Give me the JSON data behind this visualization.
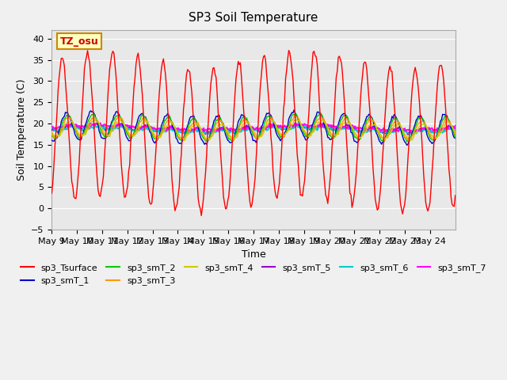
{
  "title": "SP3 Soil Temperature",
  "ylabel": "Soil Temperature (C)",
  "xlabel": "Time",
  "annotation": "TZ_osu",
  "ylim": [
    -5,
    42
  ],
  "yticks": [
    -5,
    0,
    5,
    10,
    15,
    20,
    25,
    30,
    35,
    40
  ],
  "xtick_labels": [
    "May 9",
    "May 10",
    "May 11",
    "May 12",
    "May 13",
    "May 14",
    "May 15",
    "May 16",
    "May 17",
    "May 18",
    "May 19",
    "May 20",
    "May 21",
    "May 22",
    "May 23",
    "May 24"
  ],
  "n_days": 16,
  "series_colors": {
    "sp3_Tsurface": "#ff0000",
    "sp3_smT_1": "#0000cc",
    "sp3_smT_2": "#00cc00",
    "sp3_smT_3": "#ff9900",
    "sp3_smT_4": "#cccc00",
    "sp3_smT_5": "#9900cc",
    "sp3_smT_6": "#00cccc",
    "sp3_smT_7": "#ff00ff"
  },
  "fig_facecolor": "#f0f0f0",
  "ax_facecolor": "#e8e8e8",
  "grid_color": "#ffffff",
  "annotation_text_color": "#cc0000",
  "annotation_bg": "#ffffc0",
  "annotation_edge": "#cc8800"
}
